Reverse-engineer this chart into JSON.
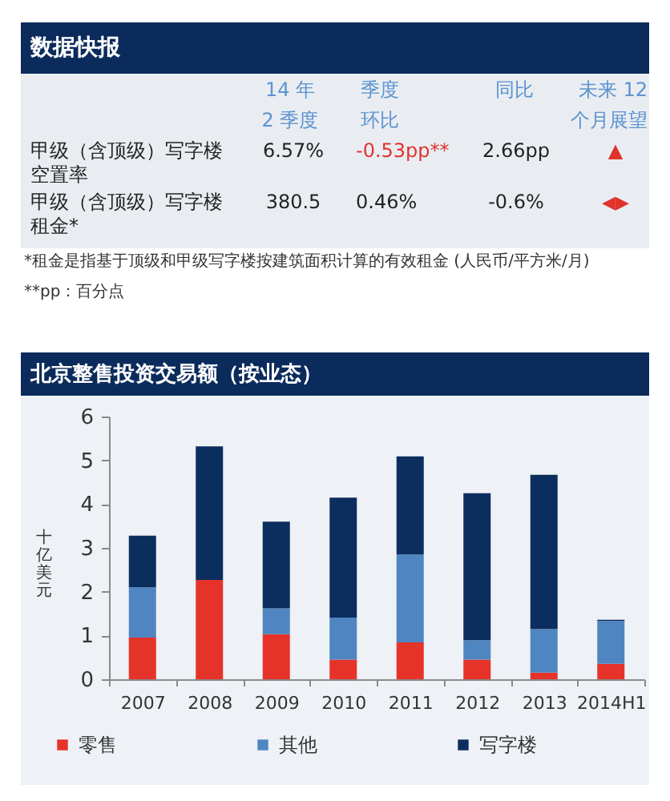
{
  "chart_data": [
    {
      "type": "other",
      "title": "数据快报",
      "annotations": [
        "14 年\n2 季度",
        "季度环比",
        "同比",
        "未来 12\n个月展望",
        "甲级（含顶级）写字楼空置率",
        "6.57%",
        "-0.53pp**",
        "2.66pp",
        "▲",
        "甲级（含顶级）写字楼租金*",
        "380.5",
        "0.46%",
        "-0.6%",
        "◀▶",
        "*租金是指基于顶级和甲级写字楼按建筑面积计算的有效租金 (人民币/平方米/月)",
        "**pp：百分点"
      ]
    },
    {
      "type": "bar",
      "title": "北京整售投资交易额（按业态）",
      "ylabel": "十亿美元",
      "categories": [
        "2007",
        "2008",
        "2009",
        "2010",
        "2011",
        "2012",
        "2013",
        "2014H1"
      ],
      "stacked": true,
      "ylim": [
        0,
        6
      ],
      "yticks": [
        0,
        1,
        2,
        3,
        4,
        5,
        6
      ],
      "legend": "bottom",
      "series": [
        {
          "name": "零售",
          "color": "#e5332a",
          "values": [
            0.95,
            2.27,
            1.03,
            0.45,
            0.84,
            0.45,
            0.15,
            0.35
          ]
        },
        {
          "name": "其他",
          "color": "#4f86c1",
          "values": [
            1.15,
            null,
            0.59,
            0.96,
            2.01,
            0.44,
            1.0,
            0.98
          ]
        },
        {
          "name": "写字楼",
          "color": "#0c2e5e",
          "values": [
            1.18,
            3.05,
            1.98,
            2.74,
            2.24,
            3.36,
            3.52,
            0.03
          ]
        }
      ]
    }
  ]
}
